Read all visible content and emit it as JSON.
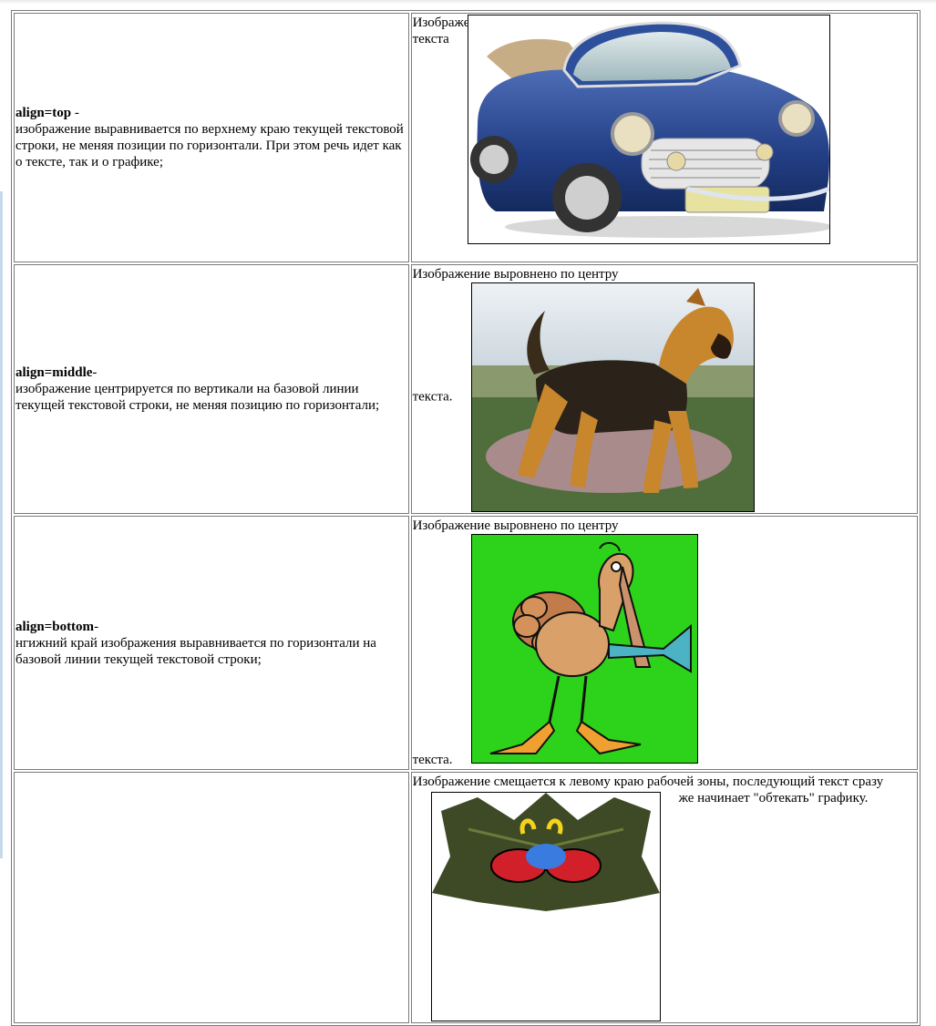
{
  "rows": [
    {
      "keyword": "align=top",
      "separator": " -",
      "description": "изображение выравнивается по верхнему краю текущей текстовой строки, не меняя позиции по горизонтали. При этом речь идет как о тексте, так и о графике;",
      "demo_line1": "Изображение выровнено по верху",
      "demo_line2": "текста",
      "image_icon": "car-icon"
    },
    {
      "keyword": "align=middle",
      "separator": "-",
      "description": "изображение центрируется по вертикали на базовой линии текущей текстовой строки, не меняя позицию по горизонтали;",
      "demo_line1": "Изображение выровнено по центру",
      "demo_line2": "текста.",
      "image_icon": "dog-icon"
    },
    {
      "keyword": "align=bottom",
      "separator": "-",
      "description": "нгижний край изображения выравнивается по горизонтали на базовой линии текущей текстовой строки;",
      "demo_line1": "Изображение выровнено по центру",
      "demo_line2": "текста.",
      "image_icon": "turkey-icon"
    },
    {
      "demo_line1": "Изображение смещается к левому краю рабочей зоны, последующий текст сразу",
      "demo_line2": "же начинает \"обтекать\" графику.",
      "image_icon": "leaf-bug-icon"
    }
  ]
}
